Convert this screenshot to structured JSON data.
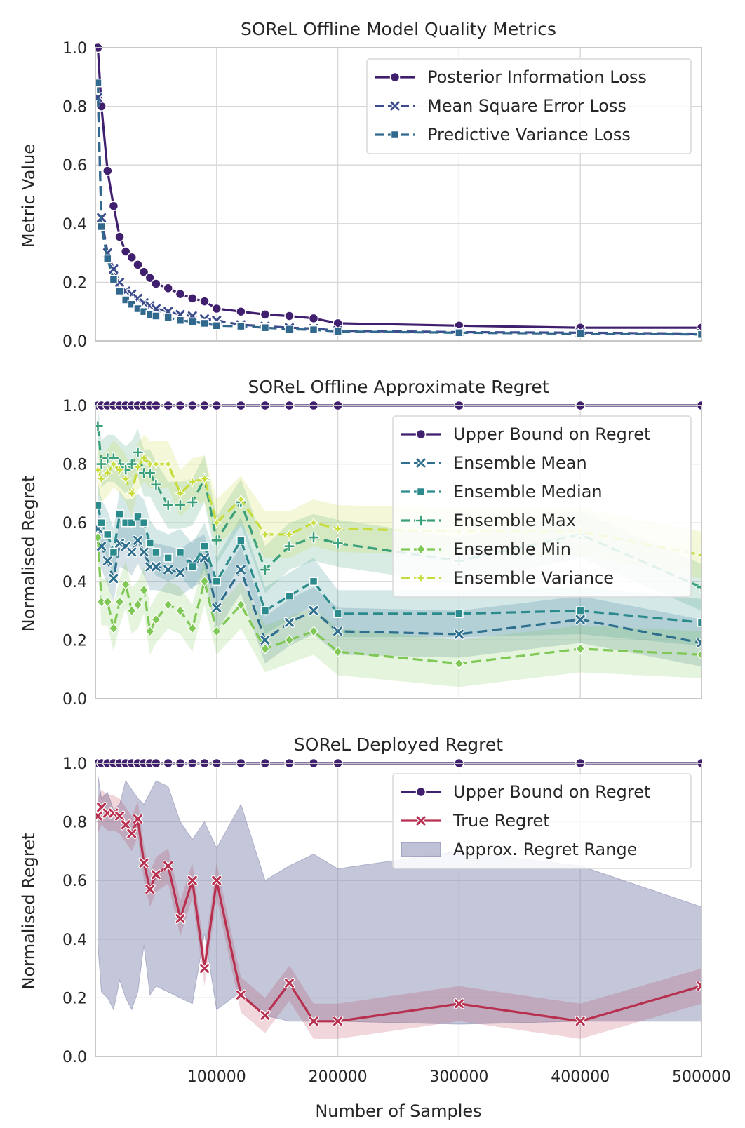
{
  "chart_data": [
    {
      "type": "line",
      "title": "SOReL Offline Model Quality Metrics",
      "xlabel": "",
      "ylabel": "Metric Value",
      "xlim": [
        0,
        500000
      ],
      "ylim": [
        0.0,
        1.0
      ],
      "yticks": [
        "0.0",
        "0.2",
        "0.4",
        "0.6",
        "0.8",
        "1.0"
      ],
      "legend_position": "top-right",
      "series": [
        {
          "name": "Posterior Information Loss",
          "color": "#3f1f6e",
          "dash": "solid",
          "marker": "circle",
          "x": [
            2000,
            5000,
            10000,
            15000,
            20000,
            25000,
            30000,
            35000,
            40000,
            45000,
            50000,
            60000,
            70000,
            80000,
            90000,
            100000,
            120000,
            140000,
            160000,
            180000,
            200000,
            300000,
            400000,
            500000
          ],
          "y": [
            1.0,
            0.8,
            0.58,
            0.46,
            0.355,
            0.305,
            0.285,
            0.26,
            0.235,
            0.215,
            0.195,
            0.18,
            0.16,
            0.145,
            0.135,
            0.11,
            0.1,
            0.09,
            0.085,
            0.077,
            0.06,
            0.052,
            0.045,
            0.045
          ]
        },
        {
          "name": "Mean Square Error Loss",
          "color": "#3b4b8c",
          "dash": "dashed",
          "marker": "x",
          "x": [
            2000,
            5000,
            10000,
            15000,
            20000,
            25000,
            30000,
            35000,
            40000,
            45000,
            50000,
            60000,
            70000,
            80000,
            90000,
            100000,
            120000,
            140000,
            160000,
            180000,
            200000,
            300000,
            400000,
            500000
          ],
          "y": [
            0.83,
            0.42,
            0.3,
            0.245,
            0.2,
            0.17,
            0.16,
            0.145,
            0.13,
            0.12,
            0.11,
            0.1,
            0.09,
            0.085,
            0.075,
            0.07,
            0.055,
            0.05,
            0.045,
            0.042,
            0.035,
            0.03,
            0.028,
            0.025
          ]
        },
        {
          "name": "Predictive Variance Loss",
          "color": "#31688e",
          "dash": "dashed",
          "marker": "square",
          "x": [
            2000,
            5000,
            10000,
            15000,
            20000,
            25000,
            30000,
            35000,
            40000,
            45000,
            50000,
            60000,
            70000,
            80000,
            90000,
            100000,
            120000,
            140000,
            160000,
            180000,
            200000,
            300000,
            400000,
            500000
          ],
          "y": [
            0.88,
            0.39,
            0.28,
            0.21,
            0.17,
            0.14,
            0.125,
            0.11,
            0.1,
            0.09,
            0.085,
            0.08,
            0.07,
            0.065,
            0.06,
            0.052,
            0.05,
            0.045,
            0.04,
            0.038,
            0.032,
            0.028,
            0.025,
            0.022
          ]
        }
      ]
    },
    {
      "type": "line",
      "title": "SOReL Offline Approximate Regret",
      "xlabel": "",
      "ylabel": "Normalised Regret",
      "xlim": [
        0,
        500000
      ],
      "ylim": [
        0.0,
        1.0
      ],
      "yticks": [
        "0.0",
        "0.2",
        "0.4",
        "0.6",
        "0.8",
        "1.0"
      ],
      "legend_position": "top-right",
      "series": [
        {
          "name": "Upper Bound on Regret",
          "color": "#3f1f6e",
          "dash": "solid",
          "marker": "circle",
          "x": [
            2000,
            5000,
            10000,
            15000,
            20000,
            25000,
            30000,
            35000,
            40000,
            45000,
            50000,
            60000,
            70000,
            80000,
            90000,
            100000,
            120000,
            140000,
            160000,
            180000,
            200000,
            300000,
            400000,
            500000
          ],
          "y": [
            1.0,
            1.0,
            1.0,
            1.0,
            1.0,
            1.0,
            1.0,
            1.0,
            1.0,
            1.0,
            1.0,
            1.0,
            1.0,
            1.0,
            1.0,
            1.0,
            1.0,
            1.0,
            1.0,
            1.0,
            1.0,
            1.0,
            1.0,
            1.0
          ]
        },
        {
          "name": "Ensemble Mean",
          "color": "#2f6f8e",
          "dash": "dashed",
          "marker": "x",
          "x": [
            2000,
            5000,
            10000,
            15000,
            20000,
            25000,
            30000,
            35000,
            40000,
            45000,
            50000,
            60000,
            70000,
            80000,
            90000,
            100000,
            120000,
            140000,
            160000,
            180000,
            200000,
            300000,
            400000,
            500000
          ],
          "y": [
            0.58,
            0.52,
            0.47,
            0.41,
            0.53,
            0.52,
            0.5,
            0.54,
            0.5,
            0.45,
            0.45,
            0.44,
            0.43,
            0.46,
            0.48,
            0.31,
            0.44,
            0.2,
            0.26,
            0.3,
            0.23,
            0.22,
            0.27,
            0.19
          ]
        },
        {
          "name": "Ensemble Median",
          "color": "#2a8a8c",
          "dash": "dashed",
          "marker": "square",
          "x": [
            2000,
            5000,
            10000,
            15000,
            20000,
            25000,
            30000,
            35000,
            40000,
            45000,
            50000,
            60000,
            70000,
            80000,
            90000,
            100000,
            120000,
            140000,
            160000,
            180000,
            200000,
            300000,
            400000,
            500000
          ],
          "y": [
            0.66,
            0.6,
            0.56,
            0.5,
            0.63,
            0.6,
            0.6,
            0.62,
            0.6,
            0.53,
            0.5,
            0.48,
            0.5,
            0.45,
            0.52,
            0.4,
            0.54,
            0.3,
            0.35,
            0.4,
            0.29,
            0.29,
            0.3,
            0.26
          ]
        },
        {
          "name": "Ensemble Max",
          "color": "#3aa07a",
          "dash": "dashed",
          "marker": "plus",
          "x": [
            2000,
            5000,
            10000,
            15000,
            20000,
            25000,
            30000,
            35000,
            40000,
            45000,
            50000,
            60000,
            70000,
            80000,
            90000,
            100000,
            120000,
            140000,
            160000,
            180000,
            200000,
            300000,
            400000,
            500000
          ],
          "y": [
            0.93,
            0.8,
            0.82,
            0.82,
            0.8,
            0.78,
            0.8,
            0.84,
            0.77,
            0.77,
            0.73,
            0.66,
            0.66,
            0.67,
            0.75,
            0.54,
            0.67,
            0.44,
            0.52,
            0.55,
            0.53,
            0.47,
            0.56,
            0.38
          ]
        },
        {
          "name": "Ensemble Min",
          "color": "#7fc855",
          "dash": "dashed",
          "marker": "diamond",
          "x": [
            2000,
            5000,
            10000,
            15000,
            20000,
            25000,
            30000,
            35000,
            40000,
            45000,
            50000,
            60000,
            70000,
            80000,
            90000,
            100000,
            120000,
            140000,
            160000,
            180000,
            200000,
            300000,
            400000,
            500000
          ],
          "y": [
            0.55,
            0.33,
            0.33,
            0.24,
            0.33,
            0.39,
            0.3,
            0.32,
            0.37,
            0.23,
            0.27,
            0.32,
            0.3,
            0.24,
            0.4,
            0.23,
            0.32,
            0.17,
            0.2,
            0.23,
            0.16,
            0.12,
            0.17,
            0.15
          ]
        },
        {
          "name": "Ensemble Variance",
          "color": "#c6dc3a",
          "dash": "dashed",
          "marker": "star",
          "x": [
            2000,
            5000,
            10000,
            15000,
            20000,
            25000,
            30000,
            35000,
            40000,
            45000,
            50000,
            60000,
            70000,
            80000,
            90000,
            100000,
            120000,
            140000,
            160000,
            180000,
            200000,
            300000,
            400000,
            500000
          ],
          "y": [
            0.78,
            0.75,
            0.77,
            0.8,
            0.78,
            0.75,
            0.7,
            0.79,
            0.82,
            0.8,
            0.8,
            0.8,
            0.7,
            0.74,
            0.75,
            0.6,
            0.68,
            0.56,
            0.56,
            0.6,
            0.58,
            0.57,
            0.57,
            0.49
          ]
        }
      ]
    },
    {
      "type": "line",
      "title": "SOReL Deployed Regret",
      "xlabel": "Number of Samples",
      "ylabel": "Normalised Regret",
      "xlim": [
        0,
        500000
      ],
      "ylim": [
        0.0,
        1.0
      ],
      "xticks": [
        "100000",
        "200000",
        "300000",
        "400000",
        "500000"
      ],
      "yticks": [
        "0.0",
        "0.2",
        "0.4",
        "0.6",
        "0.8",
        "1.0"
      ],
      "legend_position": "top-right",
      "series": [
        {
          "name": "Upper Bound on Regret",
          "color": "#3f1f6e",
          "dash": "solid",
          "marker": "circle",
          "x": [
            2000,
            5000,
            10000,
            15000,
            20000,
            25000,
            30000,
            35000,
            40000,
            45000,
            50000,
            60000,
            70000,
            80000,
            90000,
            100000,
            120000,
            140000,
            160000,
            180000,
            200000,
            300000,
            400000,
            500000
          ],
          "y": [
            1.0,
            1.0,
            1.0,
            1.0,
            1.0,
            1.0,
            1.0,
            1.0,
            1.0,
            1.0,
            1.0,
            1.0,
            1.0,
            1.0,
            1.0,
            1.0,
            1.0,
            1.0,
            1.0,
            1.0,
            1.0,
            1.0,
            1.0,
            1.0
          ]
        },
        {
          "name": "True Regret",
          "color": "#b8304f",
          "dash": "solid",
          "marker": "x",
          "x": [
            2000,
            5000,
            10000,
            15000,
            20000,
            25000,
            30000,
            35000,
            40000,
            45000,
            50000,
            60000,
            70000,
            80000,
            90000,
            100000,
            120000,
            140000,
            160000,
            180000,
            200000,
            300000,
            400000,
            500000
          ],
          "y": [
            0.82,
            0.85,
            0.83,
            0.83,
            0.82,
            0.79,
            0.76,
            0.81,
            0.66,
            0.57,
            0.62,
            0.65,
            0.47,
            0.6,
            0.3,
            0.6,
            0.21,
            0.14,
            0.25,
            0.12,
            0.12,
            0.18,
            0.12,
            0.24
          ]
        },
        {
          "name": "Approx. Regret Range",
          "color": "#8a8fb4",
          "kind": "range",
          "x": [
            2000,
            5000,
            10000,
            15000,
            20000,
            25000,
            30000,
            35000,
            40000,
            45000,
            50000,
            60000,
            70000,
            80000,
            90000,
            100000,
            120000,
            140000,
            160000,
            180000,
            200000,
            300000,
            400000,
            500000
          ],
          "lower": [
            0.38,
            0.22,
            0.2,
            0.16,
            0.26,
            0.2,
            0.16,
            0.22,
            0.38,
            0.21,
            0.24,
            0.22,
            0.2,
            0.18,
            0.42,
            0.16,
            0.22,
            0.14,
            0.12,
            0.12,
            0.12,
            0.11,
            0.12,
            0.12
          ],
          "upper": [
            0.96,
            0.88,
            0.9,
            0.84,
            0.86,
            0.94,
            0.91,
            0.88,
            0.86,
            0.9,
            0.94,
            0.92,
            0.8,
            0.74,
            0.8,
            0.71,
            0.86,
            0.6,
            0.65,
            0.69,
            0.64,
            0.7,
            0.65,
            0.51
          ]
        }
      ]
    }
  ]
}
